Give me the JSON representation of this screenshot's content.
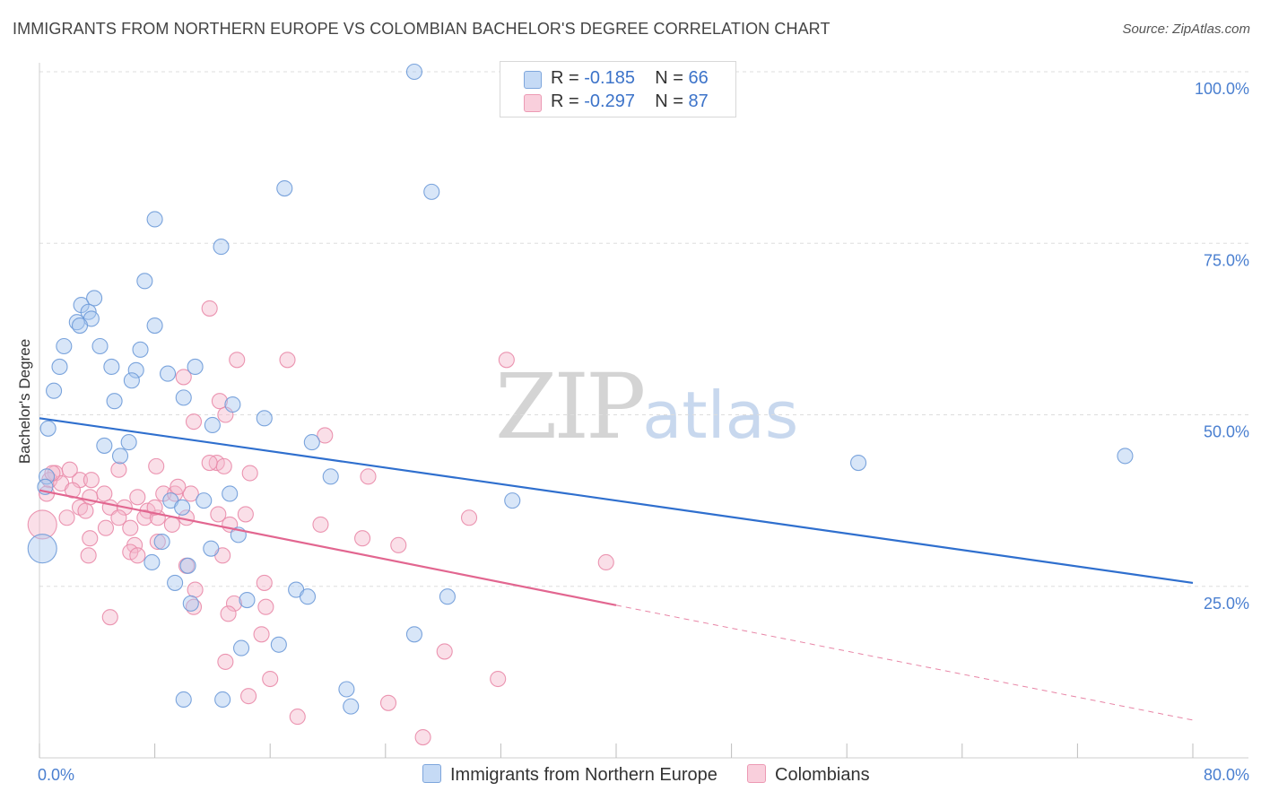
{
  "title": "IMMIGRANTS FROM NORTHERN EUROPE VS COLOMBIAN BACHELOR'S DEGREE CORRELATION CHART",
  "source": "Source: ZipAtlas.com",
  "watermark": {
    "zip": "ZIP",
    "atlas": "atlas"
  },
  "legend": {
    "rows": [
      {
        "r_label": "R = ",
        "r_value": "-0.185",
        "n_label": "N = ",
        "n_value": "66"
      },
      {
        "r_label": "R = ",
        "r_value": "-0.297",
        "n_label": "N = ",
        "n_value": "87"
      }
    ]
  },
  "bottom_legend": [
    "Immigrants from Northern Europe",
    "Colombians"
  ],
  "colors": {
    "blue_fill": "#a9c8ef",
    "blue_stroke": "#6d9ad8",
    "blue_line": "#2f6fce",
    "pink_fill": "#f4b8cc",
    "pink_stroke": "#e98aa8",
    "pink_line": "#e26690",
    "tick_label": "#4a7fd0",
    "grid": "#dddddd"
  },
  "chart_data": {
    "type": "scatter",
    "title": "IMMIGRANTS FROM NORTHERN EUROPE VS COLOMBIAN BACHELOR'S DEGREE CORRELATION CHART",
    "xlabel": "",
    "ylabel": "Bachelor's Degree",
    "xlim": [
      0,
      80
    ],
    "ylim": [
      0,
      102
    ],
    "x_tick_labels": [
      {
        "value": 0,
        "label": "0.0%"
      },
      {
        "value": 80,
        "label": "80.0%"
      }
    ],
    "y_tick_labels": [
      {
        "value": 25,
        "label": "25.0%"
      },
      {
        "value": 50,
        "label": "50.0%"
      },
      {
        "value": 75,
        "label": "75.0%"
      },
      {
        "value": 100,
        "label": "100.0%"
      }
    ],
    "grid": true,
    "legend_position": "top-center",
    "series": [
      {
        "name": "Immigrants from Northern Europe",
        "R": -0.185,
        "N": 66,
        "trend": {
          "x": [
            0,
            80
          ],
          "y": [
            49.5,
            25.5
          ],
          "dashed_from": null
        },
        "points": [
          [
            26,
            100
          ],
          [
            17,
            83
          ],
          [
            27.2,
            82.5
          ],
          [
            8,
            78.5
          ],
          [
            12.6,
            74.5
          ],
          [
            7.3,
            69.5
          ],
          [
            3.8,
            67
          ],
          [
            2.9,
            66
          ],
          [
            3.4,
            65
          ],
          [
            3.6,
            64
          ],
          [
            2.6,
            63.5
          ],
          [
            2.8,
            63
          ],
          [
            8,
            63
          ],
          [
            1.7,
            60
          ],
          [
            4.2,
            60
          ],
          [
            7,
            59.5
          ],
          [
            1.4,
            57
          ],
          [
            5,
            57
          ],
          [
            6.7,
            56.5
          ],
          [
            8.9,
            56
          ],
          [
            10.8,
            57
          ],
          [
            6.4,
            55
          ],
          [
            1,
            53.5
          ],
          [
            5.2,
            52
          ],
          [
            10,
            52.5
          ],
          [
            13.4,
            51.5
          ],
          [
            15.6,
            49.5
          ],
          [
            12,
            48.5
          ],
          [
            0.6,
            48
          ],
          [
            6.2,
            46
          ],
          [
            4.5,
            45.5
          ],
          [
            18.9,
            46
          ],
          [
            5.6,
            44
          ],
          [
            56.8,
            43
          ],
          [
            75.3,
            44
          ],
          [
            20.2,
            41
          ],
          [
            0.5,
            41
          ],
          [
            0.4,
            39.5
          ],
          [
            13.2,
            38.5
          ],
          [
            9.1,
            37.5
          ],
          [
            11.4,
            37.5
          ],
          [
            32.8,
            37.5
          ],
          [
            9.9,
            36.5
          ],
          [
            13.8,
            32.5
          ],
          [
            8.5,
            31.5
          ],
          [
            11.9,
            30.5
          ],
          [
            7.8,
            28.5
          ],
          [
            10.3,
            28
          ],
          [
            9.4,
            25.5
          ],
          [
            17.8,
            24.5
          ],
          [
            18.6,
            23.5
          ],
          [
            14.4,
            23
          ],
          [
            28.3,
            23.5
          ],
          [
            10.5,
            22.5
          ],
          [
            26,
            18
          ],
          [
            14,
            16
          ],
          [
            16.6,
            16.5
          ],
          [
            21.3,
            10
          ],
          [
            10,
            8.5
          ],
          [
            12.7,
            8.5
          ],
          [
            21.6,
            7.5
          ],
          [
            0.2,
            30.5
          ]
        ]
      },
      {
        "name": "Colombians",
        "R": -0.297,
        "N": 87,
        "trend": {
          "x": [
            0,
            80
          ],
          "y": [
            39,
            5.5
          ],
          "dashed_from": 40
        },
        "points": [
          [
            11.8,
            65.5
          ],
          [
            17.2,
            58
          ],
          [
            13.7,
            58
          ],
          [
            32.4,
            58
          ],
          [
            10,
            55.5
          ],
          [
            12.5,
            52
          ],
          [
            10.7,
            49
          ],
          [
            19.8,
            47
          ],
          [
            1.1,
            41.5
          ],
          [
            0.7,
            40.5
          ],
          [
            1.5,
            40
          ],
          [
            2.8,
            40.5
          ],
          [
            3.6,
            40.5
          ],
          [
            5.5,
            42
          ],
          [
            8.1,
            42.5
          ],
          [
            12.3,
            43
          ],
          [
            12.8,
            42.5
          ],
          [
            22.8,
            41
          ],
          [
            0.5,
            38.5
          ],
          [
            2.3,
            39
          ],
          [
            4.5,
            38.5
          ],
          [
            3.5,
            38
          ],
          [
            6.8,
            38
          ],
          [
            8.6,
            38.5
          ],
          [
            9.4,
            38.5
          ],
          [
            10.5,
            38.5
          ],
          [
            2.8,
            36.5
          ],
          [
            3.2,
            36
          ],
          [
            4.9,
            36.5
          ],
          [
            5.9,
            36.5
          ],
          [
            7.5,
            36
          ],
          [
            1.9,
            35
          ],
          [
            5.5,
            35
          ],
          [
            7.3,
            35
          ],
          [
            8.2,
            35
          ],
          [
            10.2,
            35
          ],
          [
            12.4,
            35.5
          ],
          [
            14.3,
            35.5
          ],
          [
            19.5,
            34
          ],
          [
            29.8,
            35
          ],
          [
            4.6,
            33.5
          ],
          [
            6.3,
            33.5
          ],
          [
            9.2,
            34
          ],
          [
            13.2,
            34
          ],
          [
            3.5,
            32
          ],
          [
            6.6,
            31
          ],
          [
            8.2,
            31.5
          ],
          [
            22.4,
            32
          ],
          [
            24.9,
            31
          ],
          [
            6.3,
            30
          ],
          [
            12.7,
            29.5
          ],
          [
            39.3,
            28.5
          ],
          [
            0.2,
            34
          ],
          [
            3.4,
            29.5
          ],
          [
            6.8,
            29.5
          ],
          [
            10.2,
            28
          ],
          [
            15.6,
            25.5
          ],
          [
            10.8,
            24.5
          ],
          [
            13.5,
            22.5
          ],
          [
            15.7,
            22
          ],
          [
            10.7,
            22
          ],
          [
            4.9,
            20.5
          ],
          [
            13.1,
            21
          ],
          [
            15.4,
            18
          ],
          [
            28.1,
            15.5
          ],
          [
            12.9,
            14
          ],
          [
            16,
            11.5
          ],
          [
            31.8,
            11.5
          ],
          [
            14.5,
            9
          ],
          [
            24.2,
            8
          ],
          [
            17.9,
            6
          ],
          [
            26.6,
            3
          ],
          [
            12.9,
            50
          ],
          [
            14.6,
            41.5
          ],
          [
            11.8,
            43
          ],
          [
            2.1,
            42
          ],
          [
            0.9,
            41.5
          ],
          [
            8,
            36.5
          ],
          [
            9.6,
            39.5
          ]
        ]
      }
    ]
  }
}
